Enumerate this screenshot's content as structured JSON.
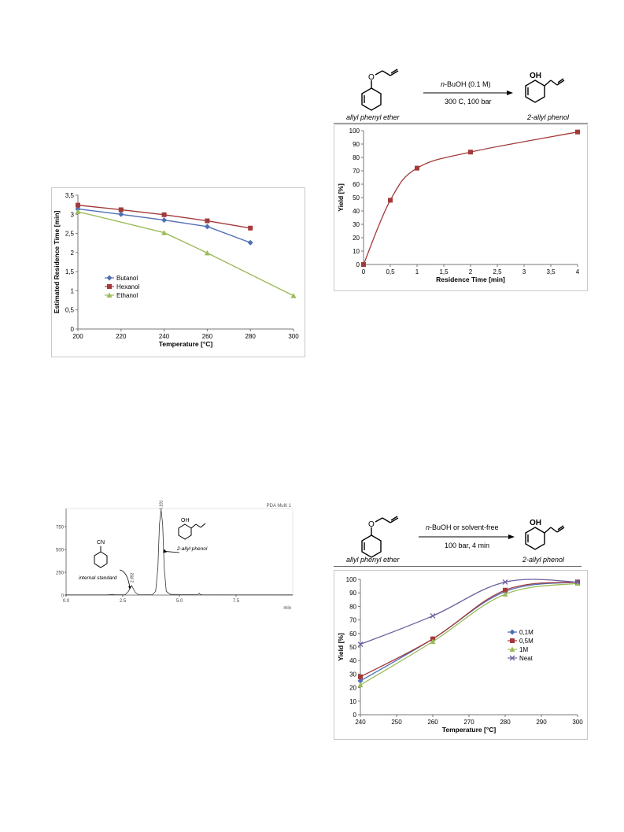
{
  "chart_data": [
    {
      "id": "residence",
      "type": "line",
      "xlabel": "Temperature [°C]",
      "ylabel": "Estimated Residence Time [min]",
      "xlim": [
        200,
        300
      ],
      "ylim": [
        0,
        3.5
      ],
      "x_ticks": [
        "200",
        "220",
        "240",
        "260",
        "280",
        "300"
      ],
      "y_ticks": [
        "0",
        "0,5",
        "1",
        "1,5",
        "2",
        "2,5",
        "3",
        "3,5"
      ],
      "legend_position": "middle-left",
      "series": [
        {
          "name": "Butanol",
          "color": "#4f6fb5",
          "marker": "diamond",
          "x": [
            200,
            220,
            240,
            260,
            280
          ],
          "y": [
            3.14,
            3.0,
            2.85,
            2.68,
            2.26
          ]
        },
        {
          "name": "Hexanol",
          "color": "#a33a3a",
          "marker": "square",
          "x": [
            200,
            220,
            240,
            260,
            280
          ],
          "y": [
            3.24,
            3.12,
            2.99,
            2.83,
            2.64
          ]
        },
        {
          "name": "Ethanol",
          "color": "#9bbb59",
          "marker": "triangle",
          "x": [
            200,
            240,
            260,
            300
          ],
          "y": [
            3.07,
            2.52,
            1.99,
            0.87
          ]
        }
      ]
    },
    {
      "id": "yield_time",
      "type": "line",
      "xlabel": "Residence Time  [min]",
      "ylabel": "Yield [%]",
      "xlim": [
        0,
        4
      ],
      "ylim": [
        0,
        100
      ],
      "x_ticks": [
        "0",
        "0,5",
        "1",
        "1,5",
        "2",
        "2,5",
        "3",
        "3,5",
        "4"
      ],
      "y_ticks": [
        "0",
        "10",
        "20",
        "30",
        "40",
        "50",
        "60",
        "70",
        "80",
        "90",
        "100"
      ],
      "series": [
        {
          "name": "",
          "color": "#a33a3a",
          "marker": "square",
          "x": [
            0,
            0.5,
            1,
            2,
            4
          ],
          "y": [
            0,
            48,
            72,
            84,
            99
          ]
        }
      ]
    },
    {
      "id": "chromatogram",
      "type": "line",
      "title": "PDA Multi 1",
      "xlabel": "min",
      "xlim": [
        0,
        10
      ],
      "ylim": [
        0,
        950
      ],
      "x_ticks": [
        "0.0",
        "2.5",
        "5.0",
        "7.5"
      ],
      "y_ticks": [
        "0",
        "250",
        "500",
        "750"
      ],
      "peak_labels": [
        "2.892",
        "4.191"
      ],
      "annotations": [
        "internal standard",
        "2-allyl phenol"
      ],
      "series": [
        {
          "name": "",
          "color": "#333333",
          "x": [
            0,
            1.8,
            2.0,
            2.2,
            2.6,
            2.75,
            2.892,
            3.05,
            3.2,
            3.8,
            3.95,
            4.05,
            4.12,
            4.191,
            4.26,
            4.33,
            4.42,
            4.6,
            5.0,
            5.8,
            5.88,
            5.92,
            6.0,
            10
          ],
          "y": [
            2,
            2,
            6,
            3,
            3,
            40,
            105,
            30,
            4,
            3,
            40,
            300,
            780,
            935,
            780,
            300,
            40,
            8,
            4,
            4,
            20,
            5,
            3,
            2
          ]
        }
      ]
    },
    {
      "id": "yield_temp",
      "type": "line",
      "xlabel": "Temperature [°C]",
      "ylabel": "Yield [%]",
      "xlim": [
        240,
        300
      ],
      "ylim": [
        0,
        100
      ],
      "x_ticks": [
        "240",
        "250",
        "260",
        "270",
        "280",
        "290",
        "300"
      ],
      "y_ticks": [
        "0",
        "10",
        "20",
        "30",
        "40",
        "50",
        "60",
        "70",
        "80",
        "90",
        "100"
      ],
      "legend_position": "right",
      "series": [
        {
          "name": "0,1M",
          "color": "#4f6fb5",
          "marker": "diamond",
          "x": [
            240,
            260,
            280,
            300
          ],
          "y": [
            25,
            56,
            91,
            98
          ]
        },
        {
          "name": "0,5M",
          "color": "#a33a3a",
          "marker": "square",
          "x": [
            240,
            260,
            280,
            300
          ],
          "y": [
            28,
            56,
            92,
            98
          ]
        },
        {
          "name": "1M",
          "color": "#9bbb59",
          "marker": "triangle",
          "x": [
            240,
            260,
            280,
            300
          ],
          "y": [
            22,
            54,
            89,
            97
          ]
        },
        {
          "name": "Neat",
          "color": "#7060a0",
          "marker": "x",
          "x": [
            240,
            260,
            280,
            300
          ],
          "y": [
            52,
            73,
            98,
            98
          ]
        }
      ]
    }
  ],
  "scheme_top": {
    "reactant": "allyl phenyl ether",
    "product": "2-allyl phenol",
    "reagent_prefix": "n",
    "reagent_rest": "-BuOH (0.1 M)",
    "conditions": "300 C, 100 bar",
    "oh": "OH",
    "o": "O"
  },
  "scheme_bottom": {
    "reactant": "allyl phenyl ether",
    "product": "2-allyl phenol",
    "reagent_prefix": "n",
    "reagent_rest": "-BuOH or solvent-free",
    "conditions": "100 bar, 4 min",
    "oh": "OH",
    "o": "O"
  },
  "chrom_labels": {
    "cn": "CN",
    "oh": "OH"
  }
}
